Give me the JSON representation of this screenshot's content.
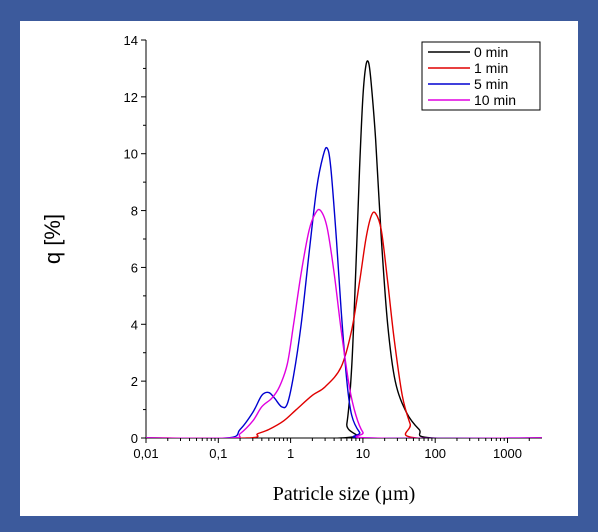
{
  "chart_data": {
    "type": "line",
    "xscale": "log",
    "xlim": [
      0.01,
      3000
    ],
    "ylim": [
      0,
      14
    ],
    "xlabel": "Patricle size (µm)",
    "ylabel": "q [%]",
    "x_ticks": [
      {
        "value": 0.01,
        "label": "0,01"
      },
      {
        "value": 0.1,
        "label": "0,1"
      },
      {
        "value": 1,
        "label": "1"
      },
      {
        "value": 10,
        "label": "10"
      },
      {
        "value": 100,
        "label": "100"
      },
      {
        "value": 1000,
        "label": "1000"
      }
    ],
    "y_ticks": [
      {
        "value": 0,
        "label": "0"
      },
      {
        "value": 2,
        "label": "2"
      },
      {
        "value": 4,
        "label": "4"
      },
      {
        "value": 6,
        "label": "6"
      },
      {
        "value": 8,
        "label": "8"
      },
      {
        "value": 10,
        "label": "10"
      },
      {
        "value": 12,
        "label": "12"
      },
      {
        "value": 14,
        "label": "14"
      }
    ],
    "legend_position": "top-right",
    "series": [
      {
        "name": "0 min",
        "color": "#000000",
        "points": [
          [
            0.01,
            0
          ],
          [
            5,
            0
          ],
          [
            6,
            0.5
          ],
          [
            7,
            2.5
          ],
          [
            8,
            6
          ],
          [
            9,
            9.5
          ],
          [
            10,
            12
          ],
          [
            11,
            13.1
          ],
          [
            12,
            13.2
          ],
          [
            13,
            12.5
          ],
          [
            15,
            10.5
          ],
          [
            18,
            7
          ],
          [
            22,
            4
          ],
          [
            28,
            2
          ],
          [
            40,
            0.9
          ],
          [
            60,
            0.3
          ],
          [
            90,
            0
          ],
          [
            3000,
            0
          ]
        ]
      },
      {
        "name": "1 min",
        "color": "#e00000",
        "points": [
          [
            0.01,
            0
          ],
          [
            0.25,
            0
          ],
          [
            0.35,
            0.15
          ],
          [
            0.5,
            0.3
          ],
          [
            0.8,
            0.6
          ],
          [
            1.2,
            1.0
          ],
          [
            2,
            1.5
          ],
          [
            3,
            1.8
          ],
          [
            5,
            2.5
          ],
          [
            7,
            3.8
          ],
          [
            9,
            5.5
          ],
          [
            11,
            7.0
          ],
          [
            13,
            7.8
          ],
          [
            15,
            7.9
          ],
          [
            18,
            7.3
          ],
          [
            22,
            5.5
          ],
          [
            27,
            3.5
          ],
          [
            35,
            1.5
          ],
          [
            45,
            0.5
          ],
          [
            55,
            0
          ],
          [
            3000,
            0
          ]
        ]
      },
      {
        "name": "5 min",
        "color": "#0000d0",
        "points": [
          [
            0.01,
            0
          ],
          [
            0.13,
            0
          ],
          [
            0.2,
            0.3
          ],
          [
            0.3,
            0.9
          ],
          [
            0.4,
            1.5
          ],
          [
            0.5,
            1.6
          ],
          [
            0.6,
            1.4
          ],
          [
            0.75,
            1.1
          ],
          [
            0.9,
            1.2
          ],
          [
            1.1,
            2.2
          ],
          [
            1.4,
            4.0
          ],
          [
            1.8,
            6.5
          ],
          [
            2.3,
            8.8
          ],
          [
            2.8,
            9.9
          ],
          [
            3.2,
            10.2
          ],
          [
            3.6,
            9.5
          ],
          [
            4.3,
            7.0
          ],
          [
            5,
            4.5
          ],
          [
            6,
            2.0
          ],
          [
            7,
            0.8
          ],
          [
            9,
            0.2
          ],
          [
            12,
            0
          ],
          [
            3000,
            0
          ]
        ]
      },
      {
        "name": "10 min",
        "color": "#e000e0",
        "points": [
          [
            0.01,
            0
          ],
          [
            0.15,
            0
          ],
          [
            0.2,
            0.15
          ],
          [
            0.3,
            0.6
          ],
          [
            0.4,
            1.1
          ],
          [
            0.55,
            1.4
          ],
          [
            0.7,
            1.8
          ],
          [
            0.9,
            2.6
          ],
          [
            1.1,
            4.0
          ],
          [
            1.4,
            5.8
          ],
          [
            1.8,
            7.3
          ],
          [
            2.2,
            7.9
          ],
          [
            2.6,
            8.0
          ],
          [
            3.2,
            7.4
          ],
          [
            4,
            5.8
          ],
          [
            5,
            3.8
          ],
          [
            6.5,
            1.8
          ],
          [
            8,
            0.8
          ],
          [
            10,
            0.2
          ],
          [
            13,
            0
          ],
          [
            3000,
            0
          ]
        ]
      }
    ]
  }
}
